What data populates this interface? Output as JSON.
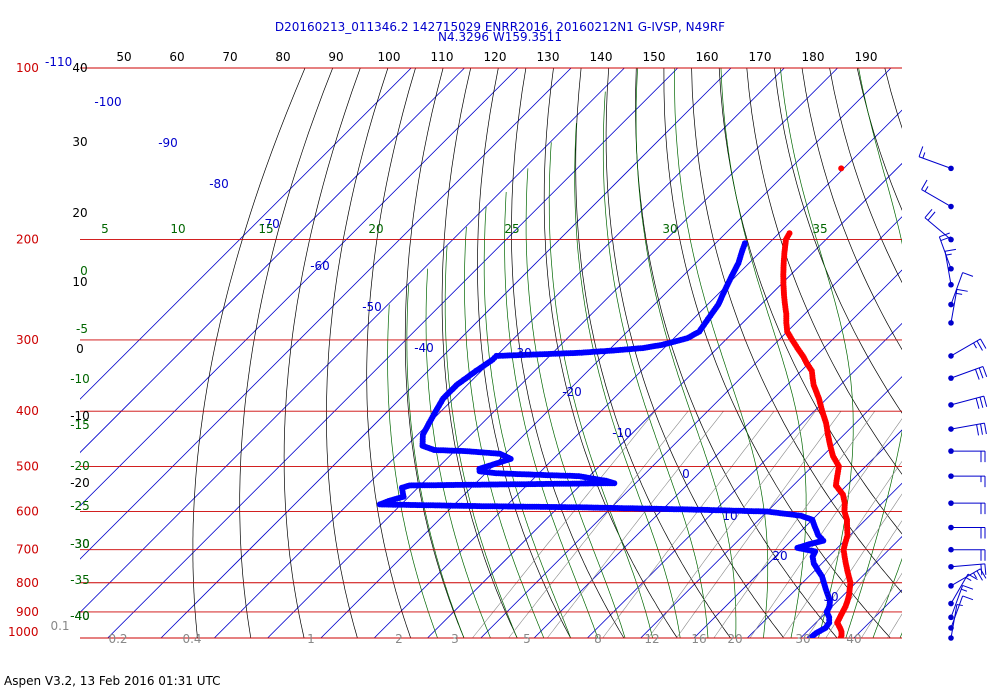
{
  "header": {
    "line1": "D20160213_011346.2 142715029 ENRR2016, 20160212N1 G-IVSP, N49RF",
    "line2": "N4.3296 W159.3511"
  },
  "footer": {
    "text": "Aspen V3.2, 13 Feb 2016  01:31 UTC"
  },
  "chart_data": {
    "type": "skew-t",
    "colors": {
      "isobar": "#cc0000",
      "isotherm": "#0000cc",
      "dry_adiabat": "#000000",
      "moist_adiabat": "#006600",
      "mixing_ratio": "#888888",
      "temperature_trace": "#ff0000",
      "dewpoint_trace": "#0000ff",
      "wind_barb": "#0000cc"
    },
    "pressure_levels": [
      "100",
      "200",
      "300",
      "400",
      "500",
      "600",
      "700",
      "800",
      "900",
      "1000"
    ],
    "top_left_label": "-110",
    "top_temperature_ticks": [
      "50",
      "60",
      "70",
      "80",
      "90",
      "100",
      "110",
      "120",
      "130",
      "140",
      "150",
      "160",
      "170",
      "180",
      "190"
    ],
    "isotherm_labels": [
      "-100",
      "-90",
      "-80",
      "-70",
      "-60",
      "-50",
      "-40",
      "-30",
      "-20",
      "-10",
      "0",
      "10",
      "20",
      "30"
    ],
    "dry_adiabat_labels": [
      "40",
      "30",
      "20",
      "10",
      "0",
      "-10",
      "-20",
      "-30",
      "-40"
    ],
    "moist_adiabat_labels": [
      "5",
      "10",
      "15",
      "20",
      "25",
      "30",
      "35"
    ],
    "moist_left_labels": [
      "0",
      "-5",
      "-10",
      "-15",
      "-20",
      "-25",
      "-30",
      "-35",
      "-40"
    ],
    "mixing_ratio_labels": [
      "0.1",
      "0.2",
      "0.4",
      "1",
      "2",
      "3",
      "5",
      "8",
      "12",
      "16",
      "20",
      "30",
      "40"
    ],
    "temperature_profile": [
      [
        195,
        -58.0
      ],
      [
        200,
        -57.5
      ],
      [
        210,
        -55.5
      ],
      [
        220,
        -53.5
      ],
      [
        230,
        -51.5
      ],
      [
        240,
        -49.5
      ],
      [
        250,
        -47.5
      ],
      [
        260,
        -45.5
      ],
      [
        270,
        -43.5
      ],
      [
        280,
        -41.8
      ],
      [
        290,
        -40.0
      ],
      [
        300,
        -37.5
      ],
      [
        310,
        -35.0
      ],
      [
        320,
        -32.5
      ],
      [
        330,
        -30.3
      ],
      [
        340,
        -28.0
      ],
      [
        350,
        -26.5
      ],
      [
        360,
        -25.0
      ],
      [
        380,
        -21.5
      ],
      [
        400,
        -18.5
      ],
      [
        420,
        -15.5
      ],
      [
        440,
        -13.0
      ],
      [
        460,
        -10.5
      ],
      [
        480,
        -8.0
      ],
      [
        500,
        -5.0
      ],
      [
        520,
        -3.5
      ],
      [
        540,
        -2.0
      ],
      [
        560,
        1.0
      ],
      [
        580,
        3.0
      ],
      [
        600,
        4.5
      ],
      [
        620,
        6.5
      ],
      [
        640,
        8.0
      ],
      [
        660,
        9.5
      ],
      [
        680,
        10.5
      ],
      [
        700,
        11.5
      ],
      [
        720,
        13.0
      ],
      [
        740,
        14.5
      ],
      [
        760,
        16.0
      ],
      [
        780,
        17.5
      ],
      [
        800,
        19.0
      ],
      [
        820,
        20.0
      ],
      [
        840,
        21.0
      ],
      [
        860,
        21.8
      ],
      [
        880,
        22.5
      ],
      [
        900,
        23.0
      ],
      [
        920,
        23.5
      ],
      [
        940,
        24.0
      ],
      [
        960,
        25.5
      ],
      [
        975,
        26.5
      ],
      [
        990,
        27.2
      ],
      [
        1000,
        27.5
      ]
    ],
    "temperature_isolated_point": [
      150,
      -60.5
    ],
    "dewpoint_profile": [
      [
        203,
        -64.5
      ],
      [
        210,
        -63.5
      ],
      [
        220,
        -62.0
      ],
      [
        230,
        -61.0
      ],
      [
        240,
        -60.0
      ],
      [
        250,
        -59.0
      ],
      [
        260,
        -58.0
      ],
      [
        270,
        -57.5
      ],
      [
        280,
        -57.0
      ],
      [
        290,
        -56.5
      ],
      [
        298,
        -57.5
      ],
      [
        306,
        -61.0
      ],
      [
        310,
        -64.0
      ],
      [
        313,
        -69.0
      ],
      [
        316,
        -75.0
      ],
      [
        320,
        -90.0
      ],
      [
        325,
        -90.0
      ],
      [
        340,
        -91.0
      ],
      [
        360,
        -92.0
      ],
      [
        380,
        -92.0
      ],
      [
        400,
        -91.0
      ],
      [
        420,
        -90.0
      ],
      [
        440,
        -89.0
      ],
      [
        460,
        -87.0
      ],
      [
        468,
        -84.0
      ],
      [
        470,
        -78.0
      ],
      [
        475,
        -71.0
      ],
      [
        485,
        -68.0
      ],
      [
        495,
        -70.0
      ],
      [
        500,
        -71.0
      ],
      [
        505,
        -72.0
      ],
      [
        510,
        -71.5
      ],
      [
        514,
        -68.0
      ],
      [
        516,
        -63.0
      ],
      [
        518,
        -58.0
      ],
      [
        520,
        -52.0
      ],
      [
        525,
        -49.0
      ],
      [
        530,
        -46.0
      ],
      [
        535,
        -44.0
      ],
      [
        540,
        -82.0
      ],
      [
        545,
        -83.0
      ],
      [
        555,
        -82.0
      ],
      [
        565,
        -81.0
      ],
      [
        575,
        -83.0
      ],
      [
        583,
        -84.0
      ],
      [
        587,
        -65.0
      ],
      [
        590,
        -45.0
      ],
      [
        595,
        -25.0
      ],
      [
        600,
        -10.0
      ],
      [
        610,
        -3.0
      ],
      [
        620,
        0.0
      ],
      [
        640,
        2.0
      ],
      [
        660,
        4.0
      ],
      [
        675,
        6.0
      ],
      [
        685,
        4.0
      ],
      [
        695,
        2.5
      ],
      [
        705,
        6.5
      ],
      [
        720,
        7.0
      ],
      [
        740,
        8.5
      ],
      [
        760,
        10.5
      ],
      [
        780,
        12.5
      ],
      [
        800,
        14.0
      ],
      [
        820,
        15.5
      ],
      [
        840,
        17.0
      ],
      [
        860,
        18.5
      ],
      [
        880,
        19.5
      ],
      [
        900,
        20.0
      ],
      [
        920,
        21.5
      ],
      [
        940,
        22.5
      ],
      [
        960,
        22.8
      ],
      [
        980,
        22.0
      ],
      [
        1000,
        21.8
      ]
    ],
    "wind_barbs": [
      {
        "p": 150,
        "spd": 15,
        "dir": 290
      },
      {
        "p": 175,
        "spd": 15,
        "dir": 300
      },
      {
        "p": 200,
        "spd": 20,
        "dir": 310
      },
      {
        "p": 225,
        "spd": 20,
        "dir": 340
      },
      {
        "p": 240,
        "spd": 15,
        "dir": 350
      },
      {
        "p": 260,
        "spd": 10,
        "dir": 20
      },
      {
        "p": 280,
        "spd": 15,
        "dir": 10
      },
      {
        "p": 320,
        "spd": 25,
        "dir": 60
      },
      {
        "p": 350,
        "spd": 30,
        "dir": 70
      },
      {
        "p": 390,
        "spd": 30,
        "dir": 75
      },
      {
        "p": 430,
        "spd": 30,
        "dir": 80
      },
      {
        "p": 470,
        "spd": 20,
        "dir": 90
      },
      {
        "p": 520,
        "spd": 15,
        "dir": 90
      },
      {
        "p": 580,
        "spd": 20,
        "dir": 90
      },
      {
        "p": 640,
        "spd": 20,
        "dir": 90
      },
      {
        "p": 700,
        "spd": 20,
        "dir": 90
      },
      {
        "p": 750,
        "spd": 20,
        "dir": 85
      },
      {
        "p": 810,
        "spd": 25,
        "dir": 60
      },
      {
        "p": 870,
        "spd": 15,
        "dir": 30
      },
      {
        "p": 920,
        "spd": 15,
        "dir": 20
      },
      {
        "p": 960,
        "spd": 10,
        "dir": 20
      },
      {
        "p": 1000,
        "spd": 5,
        "dir": 10
      }
    ]
  }
}
